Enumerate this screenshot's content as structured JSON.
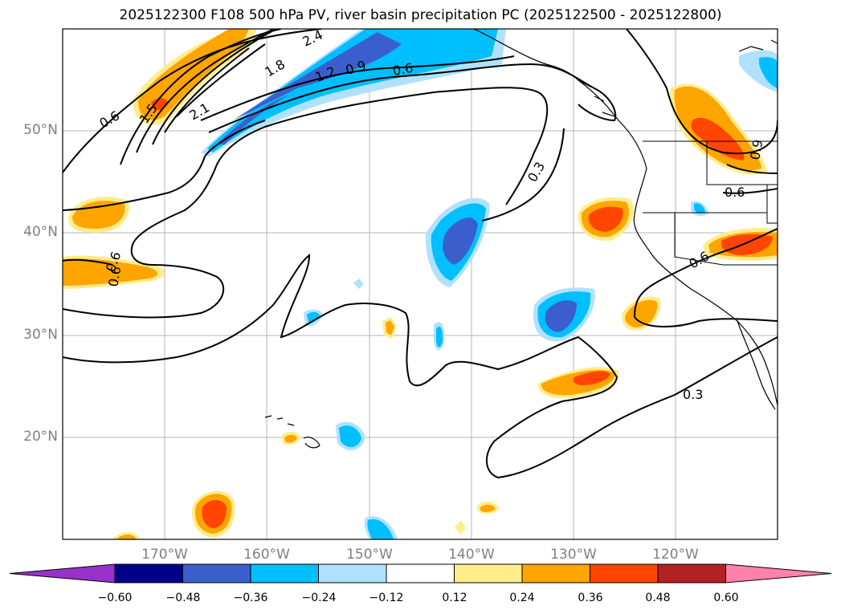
{
  "title": "2025122300 F108 500 hPa PV, river basin precipitation PC (2025122500 - 2025122800)",
  "latitude_labels": [
    "50°N",
    "40°N",
    "30°N",
    "20°N"
  ],
  "longitude_labels": [
    "170°W",
    "160°W",
    "150°W",
    "140°W",
    "130°W",
    "120°W"
  ],
  "colorbar": {
    "tick_labels": [
      "−0.60",
      "−0.48",
      "−0.36",
      "−0.24",
      "−0.12",
      "0.12",
      "0.24",
      "0.36",
      "0.48",
      "0.60"
    ],
    "colors": [
      "#9932cc",
      "#00008b",
      "#3a5fcd",
      "#00bfff",
      "#b0e2ff",
      "#ffffff",
      "#ffec8b",
      "#ffa500",
      "#ff4500",
      "#b22222",
      "#ff82ab"
    ]
  },
  "contour_labels": [
    "0.6",
    "1.5",
    "2.1",
    "1.8",
    "1.2",
    "0.9",
    "0.6",
    "2.4",
    "0.3",
    "0.6",
    "0.9",
    "0.6",
    "0.6",
    "0.3",
    "0.6"
  ]
}
